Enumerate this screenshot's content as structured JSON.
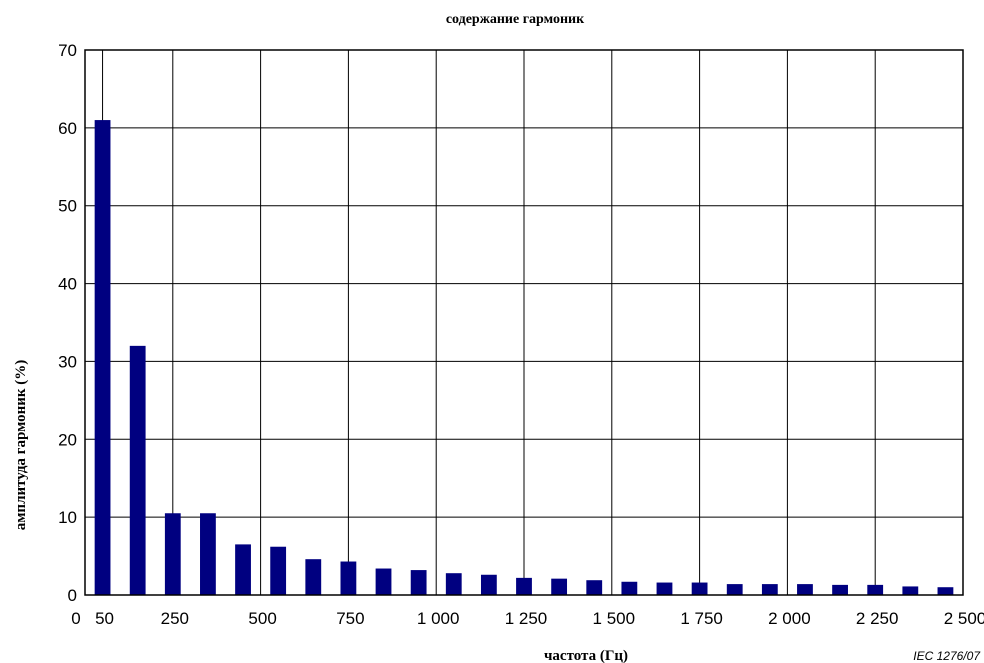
{
  "chart_data": {
    "type": "bar",
    "title": "содержание гармоник",
    "xlabel": "частота (Гц)",
    "ylabel": "амплитуда гармоник (%)",
    "ylim": [
      0,
      70
    ],
    "xlim": [
      0,
      2500
    ],
    "yticks": [
      0,
      10,
      20,
      30,
      40,
      50,
      60,
      70
    ],
    "ytick_labels": [
      "0",
      "10",
      "20",
      "30",
      "40",
      "50",
      "60",
      "70"
    ],
    "xticks": [
      50,
      250,
      500,
      750,
      1000,
      1250,
      1500,
      1750,
      2000,
      2250,
      2500
    ],
    "xtick_labels": [
      "50",
      "250",
      "500",
      "750",
      "1 000",
      "1 250",
      "1 500",
      "1 750",
      "2 000",
      "2 250",
      "2 500"
    ],
    "grid": true,
    "bar_color": "#000080",
    "x": [
      50,
      150,
      250,
      350,
      450,
      550,
      650,
      750,
      850,
      950,
      1050,
      1150,
      1250,
      1350,
      1450,
      1550,
      1650,
      1750,
      1850,
      1950,
      2050,
      2150,
      2250,
      2350,
      2450
    ],
    "values": [
      61,
      32,
      10.5,
      10.5,
      6.5,
      6.2,
      4.6,
      4.3,
      3.4,
      3.2,
      2.8,
      2.6,
      2.2,
      2.1,
      1.9,
      1.7,
      1.6,
      1.6,
      1.4,
      1.4,
      1.4,
      1.3,
      1.3,
      1.1,
      1.0
    ]
  },
  "source_label": "IEC 1276/07"
}
